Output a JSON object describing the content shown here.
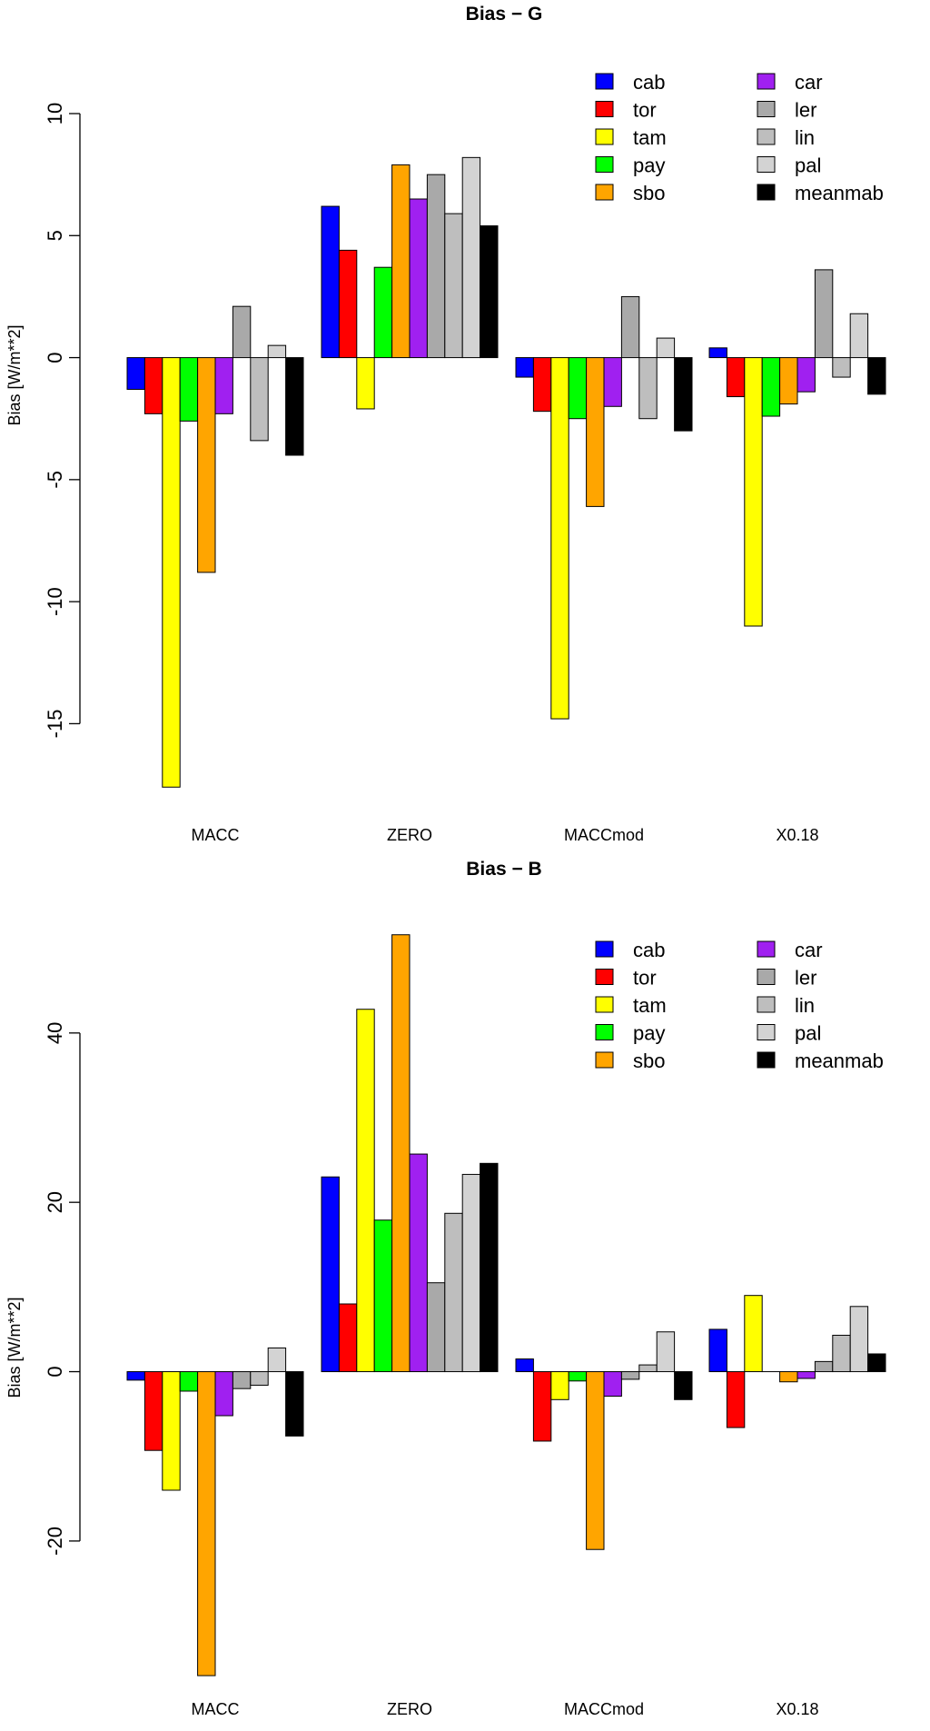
{
  "chart_data": [
    {
      "type": "bar",
      "title": "Bias −  G",
      "xlabel": "",
      "ylabel": "Bias [W/m**2]",
      "ylim": [
        -18,
        10
      ],
      "yticks": [
        10,
        5,
        0,
        -5,
        -10,
        -15
      ],
      "categories": [
        "MACC",
        "ZERO",
        "MACCmod",
        "X0.18"
      ],
      "legend_position": "top-right",
      "series": [
        {
          "name": "cab",
          "color": "#0000ff",
          "values": [
            -1.3,
            6.2,
            -0.8,
            0.4
          ]
        },
        {
          "name": "tor",
          "color": "#ff0000",
          "values": [
            -2.3,
            4.4,
            -2.2,
            -1.6
          ]
        },
        {
          "name": "tam",
          "color": "#ffff00",
          "values": [
            -17.6,
            -2.1,
            -14.8,
            -11.0
          ]
        },
        {
          "name": "pay",
          "color": "#00ff00",
          "values": [
            -2.6,
            3.7,
            -2.5,
            -2.4
          ]
        },
        {
          "name": "sbo",
          "color": "#ffa500",
          "values": [
            -8.8,
            7.9,
            -6.1,
            -1.9
          ]
        },
        {
          "name": "car",
          "color": "#a020f0",
          "values": [
            -2.3,
            6.5,
            -2.0,
            -1.4
          ]
        },
        {
          "name": "ler",
          "color": "#a9a9a9",
          "values": [
            2.1,
            7.5,
            2.5,
            3.6
          ]
        },
        {
          "name": "lin",
          "color": "#bebebe",
          "values": [
            -3.4,
            5.9,
            -2.5,
            -0.8
          ]
        },
        {
          "name": "pal",
          "color": "#d3d3d3",
          "values": [
            0.5,
            8.2,
            0.8,
            1.8
          ]
        },
        {
          "name": "meanmab",
          "color": "#000000",
          "values": [
            -4.0,
            5.4,
            -3.0,
            -1.5
          ]
        }
      ]
    },
    {
      "type": "bar",
      "title": "Bias −  B",
      "xlabel": "",
      "ylabel": "Bias [W/m**2]",
      "ylim": [
        -36,
        52
      ],
      "yticks": [
        40,
        20,
        0,
        -20
      ],
      "categories": [
        "MACC",
        "ZERO",
        "MACCmod",
        "X0.18"
      ],
      "legend_position": "top-right",
      "series": [
        {
          "name": "cab",
          "color": "#0000ff",
          "values": [
            -1.0,
            23.0,
            1.5,
            5.0
          ]
        },
        {
          "name": "tor",
          "color": "#ff0000",
          "values": [
            -9.3,
            8.0,
            -8.2,
            -6.6
          ]
        },
        {
          "name": "tam",
          "color": "#ffff00",
          "values": [
            -14.0,
            42.8,
            -3.3,
            9.0
          ]
        },
        {
          "name": "pay",
          "color": "#00ff00",
          "values": [
            -2.3,
            17.9,
            -1.1,
            0.0
          ]
        },
        {
          "name": "sbo",
          "color": "#ffa500",
          "values": [
            -35.9,
            51.6,
            -21.0,
            -1.2
          ]
        },
        {
          "name": "car",
          "color": "#a020f0",
          "values": [
            -5.2,
            25.7,
            -2.9,
            -0.8
          ]
        },
        {
          "name": "ler",
          "color": "#a9a9a9",
          "values": [
            -2.0,
            10.5,
            -0.9,
            1.2
          ]
        },
        {
          "name": "lin",
          "color": "#bebebe",
          "values": [
            -1.6,
            18.7,
            0.8,
            4.3
          ]
        },
        {
          "name": "pal",
          "color": "#d3d3d3",
          "values": [
            2.8,
            23.3,
            4.7,
            7.7
          ]
        },
        {
          "name": "meanmab",
          "color": "#000000",
          "values": [
            -7.6,
            24.6,
            -3.3,
            2.1
          ]
        }
      ]
    }
  ]
}
